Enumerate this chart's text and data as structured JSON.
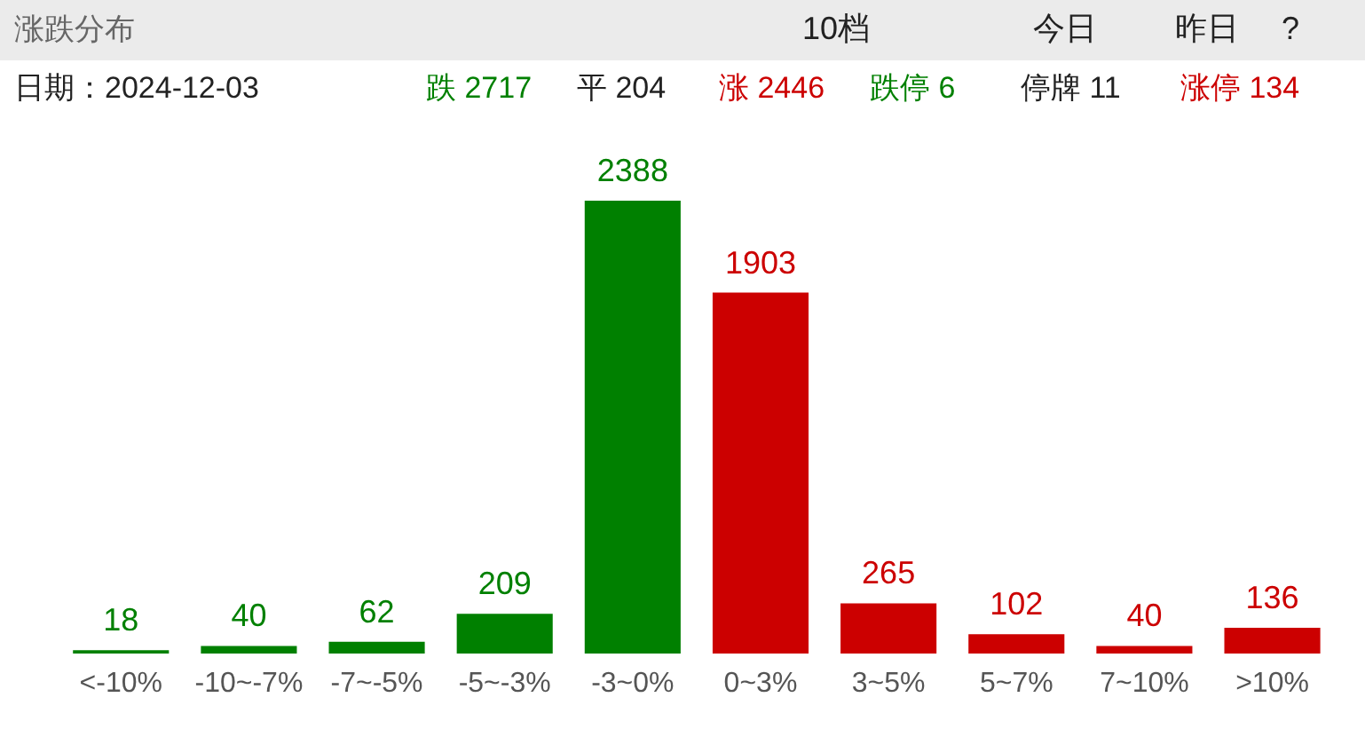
{
  "chart_data": {
    "type": "bar",
    "title": "涨跌分布",
    "categories": [
      "<-10%",
      "-10~-7%",
      "-7~-5%",
      "-5~-3%",
      "-3~0%",
      "0~3%",
      "3~5%",
      "5~7%",
      "7~10%",
      ">10%"
    ],
    "values": [
      18,
      40,
      62,
      209,
      2388,
      1903,
      265,
      102,
      40,
      136
    ],
    "colors": [
      "#008000",
      "#008000",
      "#008000",
      "#008000",
      "#008000",
      "#cc0000",
      "#cc0000",
      "#cc0000",
      "#cc0000",
      "#cc0000"
    ],
    "data_labels": true,
    "annotations": [
      "10档",
      "今日",
      "昨日",
      "?",
      "日期：2024-12-03",
      "跌 2717",
      "平 204",
      "涨 2446",
      "跌停 6",
      "停牌 11",
      "涨停 134"
    ]
  }
}
